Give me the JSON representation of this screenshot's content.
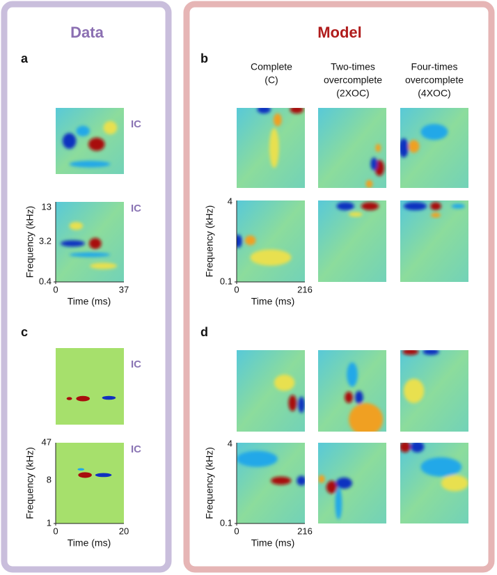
{
  "data_panel": {
    "title": "Data",
    "panels": [
      {
        "letter": "a",
        "units": [
          "IC",
          "IC"
        ],
        "yticks": [
          "13",
          "3.2",
          "0.4"
        ],
        "xticks": [
          "0",
          "37"
        ],
        "ylabel": "Frequency (kHz)",
        "xlabel": "Time (ms)"
      },
      {
        "letter": "c",
        "units": [
          "IC",
          "IC"
        ],
        "yticks": [
          "47",
          "8",
          "1"
        ],
        "xticks": [
          "0",
          "20"
        ],
        "ylabel": "Frequency (kHz)",
        "xlabel": "Time (ms)"
      }
    ]
  },
  "model_panel": {
    "title": "Model",
    "columns": [
      {
        "lines": [
          "Complete",
          "(C)"
        ]
      },
      {
        "lines": [
          "Two-times",
          "overcomplete",
          "(2XOC)"
        ]
      },
      {
        "lines": [
          "Four-times",
          "overcomplete",
          "(4XOC)"
        ]
      }
    ],
    "panels": [
      {
        "letter": "b",
        "yticks": [
          "4",
          "0.1"
        ],
        "xticks": [
          "0",
          "216"
        ],
        "ylabel": "Frequency (kHz)",
        "xlabel": "Time (ms)"
      },
      {
        "letter": "d",
        "yticks": [
          "4",
          "0.1"
        ],
        "xticks": [
          "0",
          "216"
        ],
        "ylabel": "Frequency (kHz)",
        "xlabel": "Time (ms)"
      }
    ]
  }
}
